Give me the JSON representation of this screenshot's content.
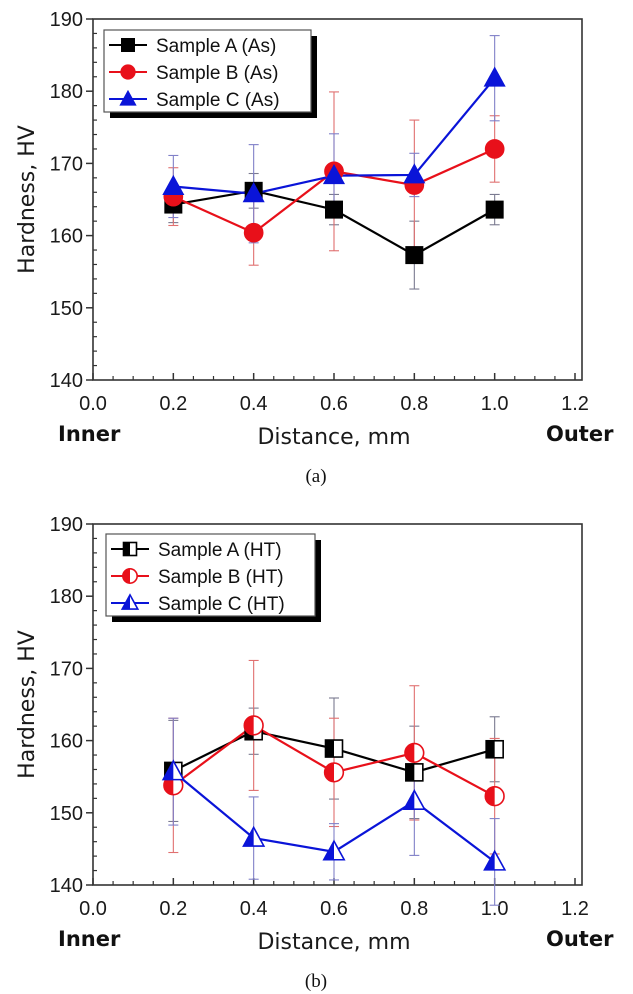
{
  "figure": {
    "captions": [
      "(a)",
      "(b)"
    ]
  },
  "chart_data": [
    {
      "type": "line",
      "panel": "(a)",
      "title": "",
      "xlabel": "Distance, mm",
      "ylabel": "Hardness, HV",
      "xlim": [
        0.0,
        1.2
      ],
      "ylim": [
        140,
        190
      ],
      "xticks": [
        0.0,
        0.2,
        0.4,
        0.6,
        0.8,
        1.0,
        1.2
      ],
      "xtick_labels": [
        "0.0",
        "0.2",
        "0.4",
        "0.6",
        "0.8",
        "1.0",
        "1.2"
      ],
      "yticks": [
        140,
        150,
        160,
        170,
        180,
        190
      ],
      "ytick_labels": [
        "140",
        "150",
        "160",
        "170",
        "180",
        "190"
      ],
      "x_minor_per_major": 4,
      "y_minor_per_major": 5,
      "side_labels": {
        "left": "Inner",
        "right": "Outer"
      },
      "legend_position": "top-left",
      "grid": false,
      "x": [
        0.2,
        0.4,
        0.6,
        0.8,
        1.0
      ],
      "series": [
        {
          "name": "Sample A (As)",
          "color": "#000000",
          "marker": "square",
          "fill": "full",
          "values": [
            164.3,
            166.2,
            163.6,
            157.3,
            163.6
          ],
          "errors": [
            2.5,
            2.4,
            2.1,
            4.7,
            2.1
          ]
        },
        {
          "name": "Sample B (As)",
          "color": "#e8101a",
          "marker": "circle",
          "fill": "full",
          "values": [
            165.4,
            160.4,
            168.9,
            167.0,
            172.0
          ],
          "errors": [
            4.0,
            4.5,
            11.0,
            9.0,
            4.6
          ]
        },
        {
          "name": "Sample C (As)",
          "color": "#0a14d8",
          "marker": "triangle",
          "fill": "full",
          "values": [
            166.8,
            165.8,
            168.3,
            168.4,
            181.8
          ],
          "errors": [
            4.3,
            6.8,
            5.8,
            3.0,
            5.9
          ]
        }
      ]
    },
    {
      "type": "line",
      "panel": "(b)",
      "title": "",
      "xlabel": "Distance, mm",
      "ylabel": "Hardness, HV",
      "xlim": [
        0.0,
        1.2
      ],
      "ylim": [
        140,
        190
      ],
      "xticks": [
        0.0,
        0.2,
        0.4,
        0.6,
        0.8,
        1.0,
        1.2
      ],
      "xtick_labels": [
        "0.0",
        "0.2",
        "0.4",
        "0.6",
        "0.8",
        "1.0",
        "1.2"
      ],
      "yticks": [
        140,
        150,
        160,
        170,
        180,
        190
      ],
      "ytick_labels": [
        "140",
        "150",
        "160",
        "170",
        "180",
        "190"
      ],
      "x_minor_per_major": 4,
      "y_minor_per_major": 5,
      "side_labels": {
        "left": "Inner",
        "right": "Outer"
      },
      "legend_position": "top-left",
      "grid": false,
      "x": [
        0.2,
        0.4,
        0.6,
        0.8,
        1.0
      ],
      "series": [
        {
          "name": "Sample A (HT)",
          "color": "#000000",
          "marker": "square",
          "fill": "left-half",
          "values": [
            155.8,
            161.3,
            158.9,
            155.6,
            158.8
          ],
          "errors": [
            7.0,
            3.2,
            7.0,
            6.4,
            4.5
          ]
        },
        {
          "name": "Sample B (HT)",
          "color": "#e8101a",
          "marker": "circle",
          "fill": "left-half",
          "values": [
            153.8,
            162.1,
            155.6,
            158.3,
            152.3
          ],
          "errors": [
            9.3,
            9.0,
            7.5,
            9.3,
            8.0
          ]
        },
        {
          "name": "Sample C (HT)",
          "color": "#0a14d8",
          "marker": "triangle",
          "fill": "left-half",
          "values": [
            155.7,
            146.5,
            144.6,
            151.6,
            143.2
          ],
          "errors": [
            7.4,
            5.7,
            3.9,
            7.5,
            6.0
          ]
        }
      ]
    }
  ]
}
